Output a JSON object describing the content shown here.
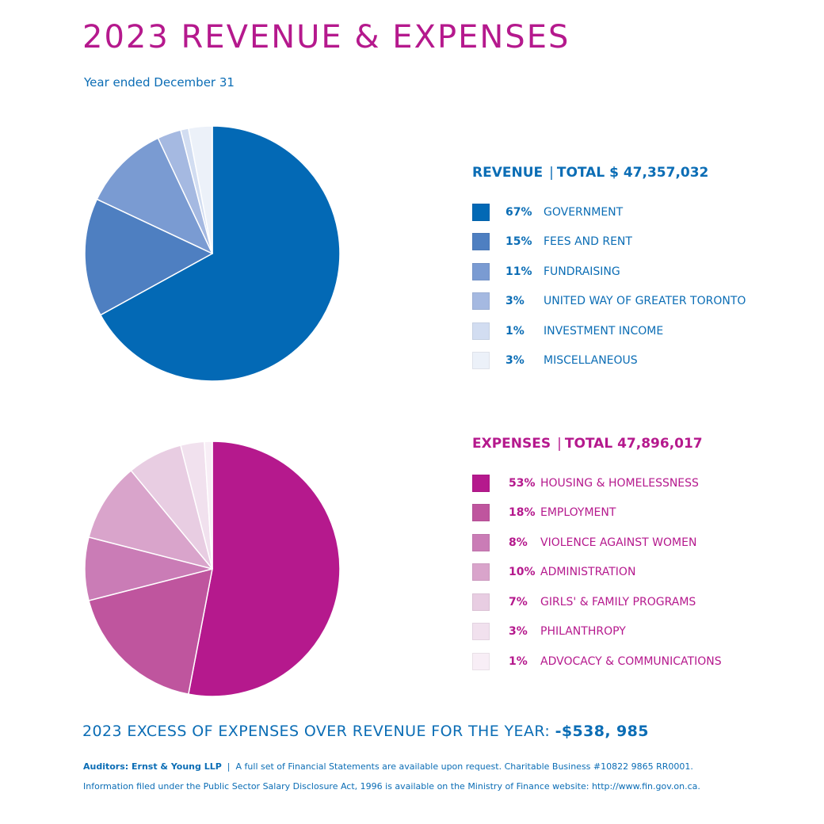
{
  "header": {
    "title": "2023 REVENUE & EXPENSES",
    "subtitle": "Year ended December 31"
  },
  "revenue": {
    "heading": "REVENUE",
    "total_label": "TOTAL $ 47,357,032",
    "separator": "|"
  },
  "expenses": {
    "heading": "EXPENSES",
    "total_label": "TOTAL   47,896,017",
    "separator": "|"
  },
  "chart_data": [
    {
      "type": "pie",
      "title": "REVENUE | TOTAL $ 47,357,032",
      "categories": [
        "GOVERNMENT",
        "FEES AND RENT",
        "FUNDRAISING",
        "UNITED WAY OF GREATER TORONTO",
        "INVESTMENT INCOME",
        "MISCELLANEOUS"
      ],
      "labels": [
        "67%",
        "15%",
        "11%",
        "3%",
        "1%",
        "3%"
      ],
      "values": [
        67,
        15,
        11,
        3,
        1,
        3
      ],
      "colors": [
        "#0369b5",
        "#4e7fc1",
        "#7a9bd2",
        "#a5b9e1",
        "#d2ddf1",
        "#ecf1f9"
      ],
      "legend": "right"
    },
    {
      "type": "pie",
      "title": "EXPENSES | TOTAL 47,896,017",
      "categories": [
        "HOUSING & HOMELESSNESS",
        "EMPLOYMENT",
        "VIOLENCE AGAINST WOMEN",
        "ADMINISTRATION",
        "GIRLS' & FAMILY PROGRAMS",
        "PHILANTHROPY",
        "ADVOCACY & COMMUNICATIONS"
      ],
      "labels": [
        "53%",
        "18%",
        "8%",
        "10%",
        "7%",
        "3%",
        "1%"
      ],
      "values": [
        53,
        18,
        8,
        10,
        7,
        3,
        1
      ],
      "colors": [
        "#b5198d",
        "#bf559e",
        "#ca7cb6",
        "#d9a4cb",
        "#e8cde2",
        "#f1e1ee",
        "#f8eef6"
      ],
      "legend": "right"
    }
  ],
  "excess": {
    "label": "2023 EXCESS OF EXPENSES OVER REVENUE FOR THE YEAR: ",
    "amount": "-$538, 985"
  },
  "footer": {
    "auditors": "Auditors: Ernst & Young LLP",
    "separator": "|",
    "line1_rest": "A full set of Financial Statements are available upon request. Charitable Business #10822 9865 RR0001.",
    "line2": "Information filed under the Public Sector Salary Disclosure Act, 1996 is available on the Ministry of Finance website: http://www.fin.gov.on.ca."
  }
}
